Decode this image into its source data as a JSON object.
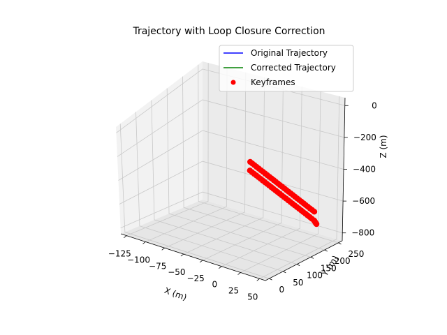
{
  "chart_data": {
    "type": "scatter",
    "projection": "3d",
    "title": "Trajectory with Loop Closure Correction",
    "xlabel": "X (m)",
    "ylabel": "Y (m)",
    "zlabel": "Z (m)",
    "xticks": [
      "−125",
      "−100",
      "−75",
      "−50",
      "−25",
      "0",
      "25",
      "50"
    ],
    "yticks": [
      "0",
      "50",
      "100",
      "150",
      "200",
      "250"
    ],
    "zticks": [
      "0",
      "−200",
      "−400",
      "−600",
      "−800"
    ],
    "xlim": [
      -130,
      55
    ],
    "ylim": [
      -20,
      270
    ],
    "zlim": [
      -820,
      40
    ],
    "grid": true,
    "legend_position": "top-right",
    "series": [
      {
        "name": "Original Trajectory",
        "kind": "line",
        "color": "#0000ff"
      },
      {
        "name": "Corrected Trajectory",
        "kind": "line",
        "color": "#008000"
      },
      {
        "name": "Keyframes",
        "kind": "scatter",
        "color": "#ff0000",
        "points": [
          [
            -60,
            245,
            -350
          ],
          [
            -40,
            235,
            -380
          ],
          [
            -20,
            225,
            -410
          ],
          [
            0,
            215,
            -440
          ],
          [
            20,
            205,
            -470
          ],
          [
            40,
            195,
            -500
          ],
          [
            -55,
            230,
            -395
          ],
          [
            -35,
            220,
            -425
          ],
          [
            -15,
            210,
            -455
          ],
          [
            5,
            200,
            -485
          ],
          [
            25,
            190,
            -515
          ],
          [
            45,
            180,
            -545
          ],
          [
            50,
            175,
            -560
          ]
        ]
      }
    ]
  }
}
